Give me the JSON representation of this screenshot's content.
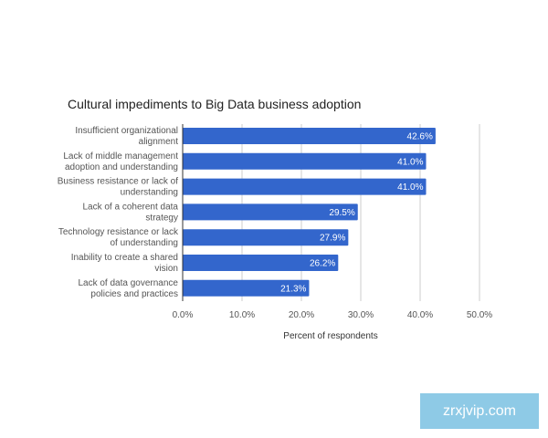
{
  "chart_data": {
    "type": "bar",
    "orientation": "horizontal",
    "title": "Cultural impediments to Big Data business adoption",
    "xlabel": "Percent of respondents",
    "ylabel": "",
    "xlim": [
      0,
      50
    ],
    "xticks": [
      "0.0%",
      "10.0%",
      "20.0%",
      "30.0%",
      "40.0%",
      "50.0%"
    ],
    "grid": true,
    "bar_color": "#3366cc",
    "categories": [
      [
        "Insufficient organizational",
        "alignment"
      ],
      [
        "Lack of middle management",
        "adoption and understanding"
      ],
      [
        "Business resistance or lack of",
        "understanding"
      ],
      [
        "Lack of a coherent data",
        "strategy"
      ],
      [
        "Technology resistance or lack",
        "of understanding"
      ],
      [
        "Inability to create a shared",
        "vision"
      ],
      [
        "Lack of data governance",
        "policies and practices"
      ]
    ],
    "values": [
      42.6,
      41.0,
      41.0,
      29.5,
      27.9,
      26.2,
      21.3
    ],
    "value_labels": [
      "42.6%",
      "41.0%",
      "41.0%",
      "29.5%",
      "27.9%",
      "26.2%",
      "21.3%"
    ]
  },
  "watermark": "zrxjvip.com"
}
